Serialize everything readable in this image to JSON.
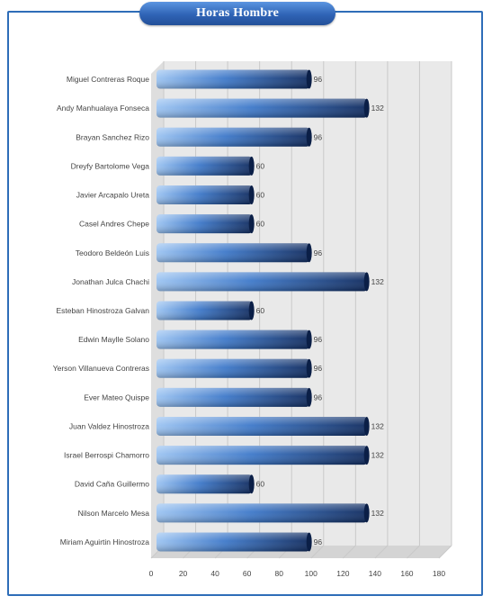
{
  "chart_data": {
    "type": "bar",
    "orientation": "horizontal",
    "title": "Horas Hombre",
    "categories": [
      "Miguel Contreras Roque",
      "Andy Manhualaya Fonseca",
      "Brayan Sanchez Rizo",
      "Dreyfy Bartolome Vega",
      "Javier Arcapalo Ureta",
      "Casel Andres Chepe",
      "Teodoro Beldeón Luis",
      "Jonathan Julca Chachi",
      "Esteban Hinostroza Galvan",
      "Edwin Maylle Solano",
      "Yerson Villanueva Contreras",
      "Ever Mateo Quispe",
      "Juan Valdez Hinostroza",
      "Israel Berrospi Chamorro",
      "David Caña Guillermo",
      "Nilson Marcelo Mesa",
      "Miriam Aguirtin Hinostroza"
    ],
    "values": [
      96,
      132,
      96,
      60,
      60,
      60,
      96,
      132,
      60,
      96,
      96,
      96,
      132,
      132,
      60,
      132,
      96
    ],
    "xlim": [
      0,
      180
    ],
    "xticks": [
      0,
      20,
      40,
      60,
      80,
      100,
      120,
      140,
      160,
      180
    ],
    "grid": true,
    "legend": "none",
    "colors": {
      "bar_light": "#9cc4f2",
      "bar_mid": "#3d78c9",
      "bar_dark": "#0f2a5e",
      "frame": "#2e6db8",
      "plot_wall": "#e9e9e9",
      "grid": "#c9c9c9"
    }
  }
}
